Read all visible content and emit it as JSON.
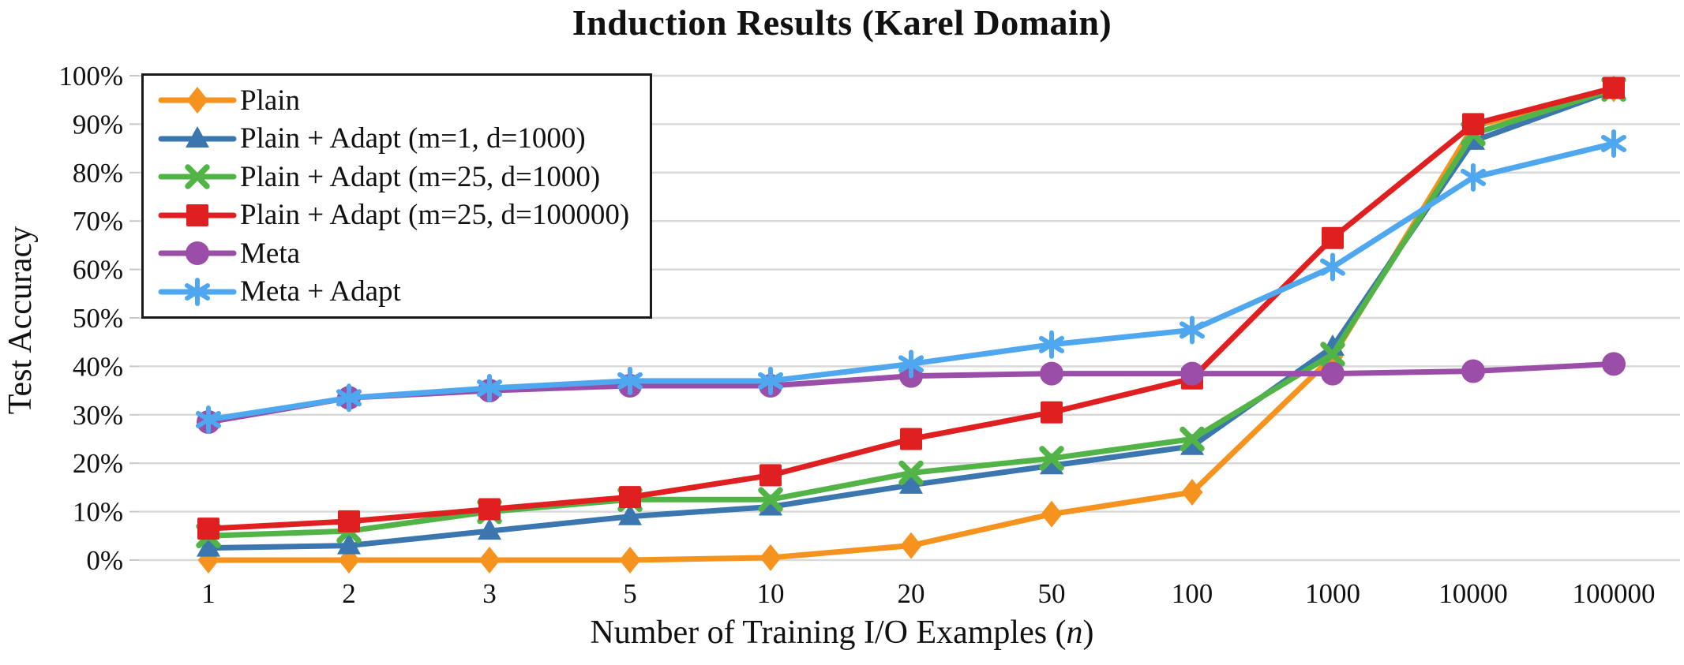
{
  "title": "Induction Results (Karel Domain)",
  "axes": {
    "y_title": "Test Accuracy",
    "x_title_prefix": "Number of Training I/O Examples (",
    "x_title_var": "n",
    "x_title_suffix": ")"
  },
  "chart_data": {
    "type": "line",
    "title": "Induction Results (Karel Domain)",
    "xlabel": "Number of Training I/O Examples (n)",
    "ylabel": "Test Accuracy",
    "categories": [
      "1",
      "2",
      "3",
      "5",
      "10",
      "20",
      "50",
      "100",
      "1000",
      "10000",
      "100000"
    ],
    "y_ticks": [
      "0%",
      "10%",
      "20%",
      "30%",
      "40%",
      "50%",
      "60%",
      "70%",
      "80%",
      "90%",
      "100%"
    ],
    "ylim": [
      0,
      100
    ],
    "grid": "horizontal",
    "gridline_color": "#d9d9d9",
    "legend_position": "top-left",
    "series": [
      {
        "name": "Plain",
        "color": "#F6921E",
        "marker": "diamond",
        "values": [
          0,
          0,
          0,
          0,
          0.5,
          3,
          9.5,
          14,
          42,
          89.5,
          97.3
        ]
      },
      {
        "name": "Plain + Adapt (m=1, d=1000)",
        "color": "#3B76AF",
        "marker": "triangle",
        "values": [
          2.5,
          3,
          6,
          9,
          11,
          15.5,
          19.5,
          23.5,
          44,
          86.5,
          97
        ]
      },
      {
        "name": "Plain + Adapt (m=25, d=1000)",
        "color": "#52B446",
        "marker": "x",
        "values": [
          5,
          6,
          10,
          12.5,
          12.5,
          18,
          21,
          25,
          42.5,
          88,
          97.2
        ]
      },
      {
        "name": "Plain + Adapt (m=25, d=100000)",
        "color": "#E02020",
        "marker": "square",
        "values": [
          6.5,
          8,
          10.5,
          13,
          17.5,
          25,
          30.5,
          37.5,
          66.5,
          90,
          97.5
        ]
      },
      {
        "name": "Meta",
        "color": "#9A4EA8",
        "marker": "circle",
        "values": [
          28.5,
          33.5,
          35,
          36,
          36,
          38,
          38.5,
          38.5,
          38.5,
          39,
          40.5
        ]
      },
      {
        "name": "Meta + Adapt",
        "color": "#4FA8EF",
        "marker": "asterisk",
        "values": [
          29,
          33.5,
          35.5,
          37,
          37,
          40.5,
          44.5,
          47.5,
          60.5,
          79,
          86
        ]
      }
    ]
  }
}
